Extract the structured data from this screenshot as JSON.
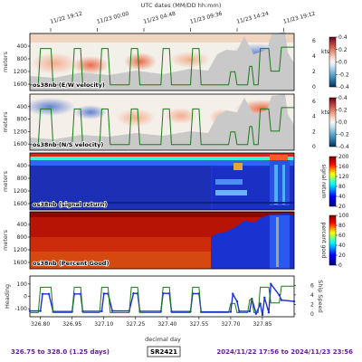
{
  "title": "UTC dates (MM/DD hh:mm)",
  "top_ticks": [
    "11/22 19:12",
    "11/23 00:00",
    "11/23 04:48",
    "11/23 09:36",
    "11/23 14:24",
    "11/23 19:12"
  ],
  "x_tick_values": [
    326.8,
    326.95,
    327.1,
    327.25,
    327.4,
    327.55,
    327.7,
    327.85
  ],
  "xlabel": "decimal day",
  "footer": {
    "left": "326.75 to 328.0 (1.25 days)",
    "center": "SR2421",
    "right": "2024/11/22 17:56 to 2024/11/23 23:56"
  },
  "colors": {
    "footer_text": "#6a1b9a",
    "speed_line": "#1a7a1a",
    "heading_dots": "#1a2fd6"
  },
  "chart_data": [
    {
      "type": "heatmap",
      "title": "os38nb (E/W velocity)",
      "ylabel": "meters",
      "y_ticks": [
        400,
        800,
        1200,
        1600
      ],
      "colorbar_ticks": [
        "0.4",
        "0.2",
        "0.0",
        "-0.2",
        "-0.4"
      ],
      "colormap": "diverging red-white-blue",
      "overlay_axis_ticks": [
        "6",
        "4",
        "2",
        "0"
      ],
      "overlay_axis_label": "kts"
    },
    {
      "type": "heatmap",
      "title": "os38nb (N/S velocity)",
      "ylabel": "meters",
      "y_ticks": [
        400,
        800,
        1200,
        1600
      ],
      "colorbar_ticks": [
        "0.4",
        "0.2",
        "0.0",
        "-0.2",
        "-0.4"
      ],
      "colormap": "diverging red-white-blue",
      "overlay_axis_ticks": [
        "6",
        "4",
        "2",
        "0"
      ],
      "overlay_axis_label": "kts"
    },
    {
      "type": "heatmap",
      "title": "os38nb (signal return)",
      "ylabel": "meters",
      "y_ticks": [
        400,
        800,
        1200,
        1600
      ],
      "colorbar_ticks": [
        "200",
        "160",
        "120",
        "80",
        "40",
        "20"
      ],
      "colorbar_label": "signal return",
      "colormap": "jet"
    },
    {
      "type": "heatmap",
      "title": "os38nb (Percent Good)",
      "ylabel": "meters",
      "y_ticks": [
        400,
        800,
        1200,
        1600
      ],
      "colorbar_ticks": [
        "100",
        "80",
        "60",
        "40",
        "20",
        "0"
      ],
      "colorbar_label": "percent good",
      "colormap": "jet"
    },
    {
      "type": "line",
      "left_ylabel": "Heading",
      "right_ylabel": "Ship Speed",
      "left_ticks": [
        "100",
        "0",
        "-100"
      ],
      "right_ticks": [
        "6",
        "4",
        "2",
        "0"
      ],
      "speed": {
        "x": [
          326.75,
          326.79,
          326.8,
          326.85,
          326.86,
          326.95,
          326.96,
          326.99,
          327.0,
          327.08,
          327.09,
          327.12,
          327.13,
          327.22,
          327.23,
          327.26,
          327.27,
          327.37,
          327.38,
          327.41,
          327.42,
          327.51,
          327.52,
          327.55,
          327.56,
          327.69,
          327.7,
          327.72,
          327.73,
          327.78,
          327.79,
          327.8,
          327.81,
          327.83,
          327.84,
          327.88,
          327.89,
          327.93,
          327.94,
          328.0
        ],
        "y": [
          0.3,
          0.3,
          5.6,
          5.6,
          0.3,
          0.3,
          5.6,
          5.6,
          0.3,
          0.3,
          5.6,
          5.6,
          0.3,
          0.3,
          5.6,
          5.6,
          0.3,
          0.3,
          5.6,
          5.6,
          0.3,
          0.3,
          5.6,
          5.6,
          0.3,
          0.3,
          2.2,
          2.2,
          0.3,
          0.3,
          3.0,
          3.0,
          0.3,
          0.3,
          5.6,
          5.6,
          2.3,
          2.3,
          5.8,
          5.8
        ]
      },
      "heading": {
        "x": [
          326.75,
          326.8,
          326.81,
          326.84,
          326.86,
          326.95,
          326.96,
          326.99,
          327.0,
          327.09,
          327.1,
          327.12,
          327.14,
          327.22,
          327.24,
          327.26,
          327.27,
          327.37,
          327.38,
          327.41,
          327.42,
          327.51,
          327.52,
          327.55,
          327.56,
          327.7,
          327.71,
          327.73,
          327.74,
          327.79,
          327.8,
          327.82,
          327.84,
          327.85,
          327.86,
          327.88,
          327.89,
          327.93,
          327.94,
          328.0
        ],
        "y": [
          -118,
          -118,
          20,
          20,
          -122,
          -122,
          20,
          20,
          -120,
          -120,
          22,
          22,
          -118,
          -118,
          24,
          24,
          -120,
          -120,
          24,
          24,
          -122,
          -122,
          22,
          22,
          -125,
          -125,
          20,
          -40,
          -120,
          -120,
          -20,
          -140,
          -60,
          -150,
          -10,
          -130,
          100,
          10,
          -30,
          -40
        ]
      }
    }
  ]
}
